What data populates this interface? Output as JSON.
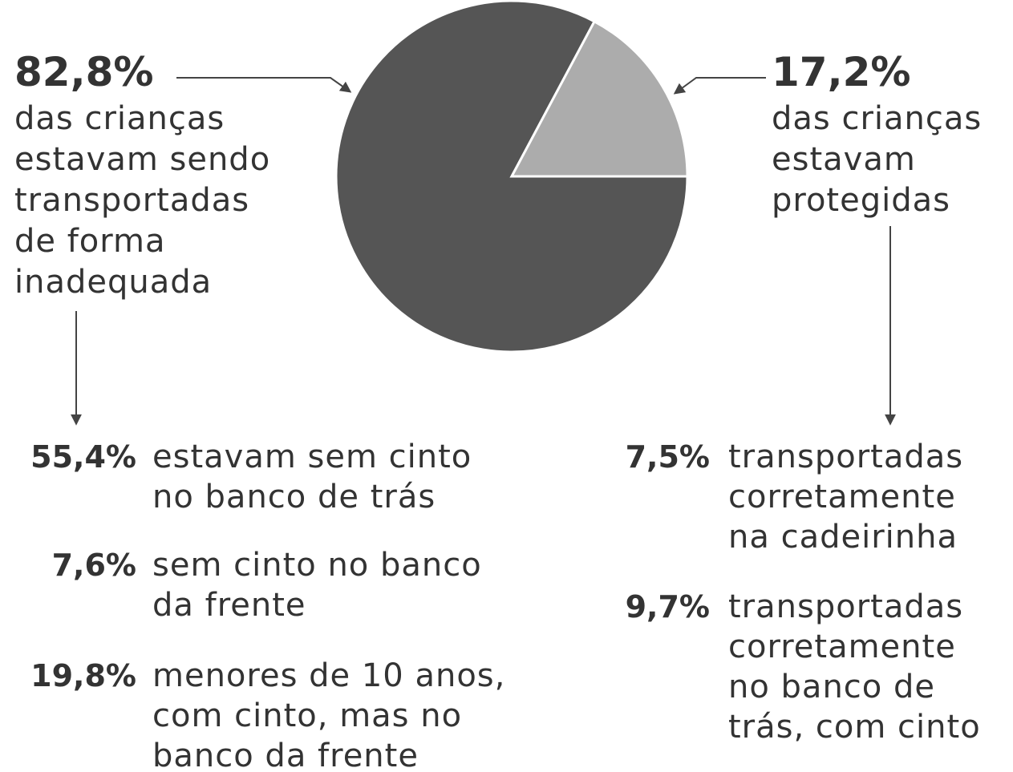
{
  "chart_data": {
    "type": "pie",
    "categories": [
      [
        "das crianças",
        "estavam sendo",
        "transportadas",
        "de forma",
        "inadequada"
      ],
      [
        "das crianças",
        "estavam",
        "protegidas"
      ]
    ],
    "values": [
      82.8,
      17.2
    ],
    "value_labels": [
      "82,8%",
      "17,2%"
    ],
    "colors": [
      "#555555",
      "#acacac"
    ]
  },
  "breakdown": {
    "left": [
      {
        "percent": "55,4%",
        "lines": [
          "estavam sem cinto",
          "no banco de trás"
        ]
      },
      {
        "percent": "7,6%",
        "lines": [
          "sem cinto no banco",
          "da frente"
        ]
      },
      {
        "percent": "19,8%",
        "lines": [
          "menores de 10 anos,",
          "com cinto, mas no",
          "banco da frente"
        ]
      }
    ],
    "right": [
      {
        "percent": "7,5%",
        "lines": [
          "transportadas",
          "corretamente",
          "na cadeirinha"
        ]
      },
      {
        "percent": "9,7%",
        "lines": [
          "transportadas",
          "corretamente",
          "no banco de",
          "trás, com cinto"
        ]
      }
    ]
  }
}
